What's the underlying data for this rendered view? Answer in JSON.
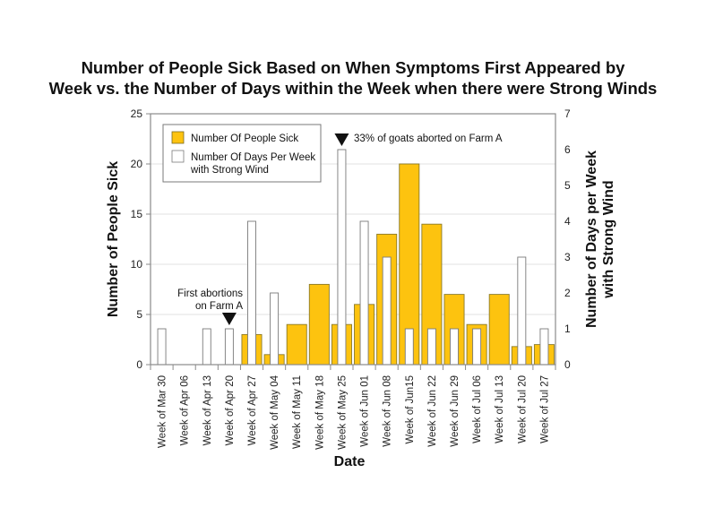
{
  "chart_data": {
    "type": "bar",
    "title": "Number of People Sick Based on When Symptoms First Appeared by Week vs. the Number of Days within the Week when there were Strong Winds",
    "title_lines": [
      "Number of People Sick Based on When Symptoms First Appeared by",
      "Week vs. the Number of Days within the Week when there were Strong Winds"
    ],
    "xlabel": "Date",
    "ylabel": "Number of People Sick",
    "y2label_lines": [
      "Number of Days per Week",
      "with Strong Wind"
    ],
    "ylim": [
      0,
      25
    ],
    "y2lim": [
      0,
      7
    ],
    "yticks": [
      0,
      5,
      10,
      15,
      20,
      25
    ],
    "y2ticks": [
      0,
      1,
      2,
      3,
      4,
      5,
      6,
      7
    ],
    "grid": true,
    "legend_position": "top-left",
    "categories": [
      "Week of Mar 30",
      "Week of Apr 06",
      "Week of Apr 13",
      "Week of Apr 20",
      "Week of Apr 27",
      "Week of May 04",
      "Week of May 11",
      "Week of May 18",
      "Week of May 25",
      "Week of Jun 01",
      "Week of Jun 08",
      "Week of Jun15",
      "Week of Jun 22",
      "Week of Jun 29",
      "Week of Jul 06",
      "Week of Jul 13",
      "Week of Jul 20",
      "Week of Jul 27"
    ],
    "series": [
      {
        "name": "Number Of People Sick",
        "axis": "left",
        "color": "#fdc30f",
        "values": [
          0,
          0,
          0,
          0,
          3,
          1,
          4,
          8,
          4,
          6,
          13,
          20,
          14,
          7,
          4,
          7,
          1.8,
          2
        ]
      },
      {
        "name": "Number Of Days Per Week with Strong Wind",
        "legend_lines": [
          "Number Of Days Per Week",
          "with Strong Wind"
        ],
        "axis": "right",
        "color": "#ffffff",
        "values": [
          1,
          0,
          1,
          1,
          4,
          2,
          0,
          0,
          6,
          4,
          3,
          1,
          1,
          1,
          1,
          0,
          3,
          1
        ]
      }
    ],
    "annotations": [
      {
        "category": "Week of Apr 20",
        "lines": [
          "First abortions",
          "on Farm A"
        ],
        "marker": "down-triangle"
      },
      {
        "category": "Week of May 25",
        "lines": [
          "33% of goats aborted on Farm A"
        ],
        "marker": "down-triangle"
      }
    ]
  }
}
